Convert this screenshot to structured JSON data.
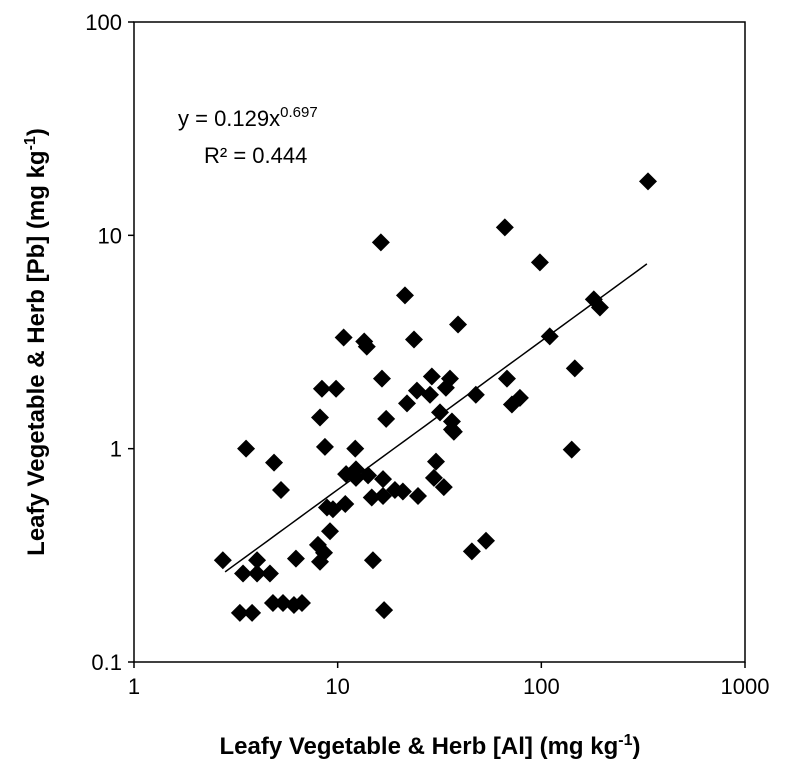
{
  "chart_data": {
    "type": "scatter",
    "xlabel": {
      "text": "Leafy Vegetable & Herb [Al] (mg kg",
      "superscript": "-1",
      "suffix": ")"
    },
    "ylabel": {
      "text": "Leafy Vegetable & Herb [Pb]  (mg kg",
      "superscript": "-1",
      "suffix": ")"
    },
    "equation": {
      "text": "y = 0.129x",
      "superscript": "0.697"
    },
    "r_squared_label": "R² = 0.444",
    "x_log": true,
    "y_log": true,
    "xlim": [
      1,
      1000
    ],
    "xticks": [
      1,
      10,
      100,
      1000
    ],
    "ylim": [
      0.1,
      100
    ],
    "yticks": [
      0.1,
      1,
      10,
      100
    ],
    "grid": false,
    "color": "#000000",
    "x": [
      2.73,
      4.02,
      3.31,
      3.8,
      3.55,
      3.43,
      4.02,
      4.65,
      6.24,
      4.87,
      5.27,
      4.81,
      5.39,
      6.1,
      6.68,
      8.19,
      8.37,
      8.66,
      8.86,
      9.17,
      9.48,
      9.82,
      8.19,
      8.0,
      8.57,
      10.7,
      12.2,
      11.0,
      12.3,
      13.5,
      13.9,
      12.3,
      14.1,
      14.7,
      14.9,
      16.7,
      16.7,
      16.3,
      16.5,
      17.3,
      16.9,
      21.4,
      21.9,
      23.7,
      20.9,
      24.8,
      29.0,
      28.4,
      29.7,
      30.4,
      31.8,
      34.0,
      36.4,
      33.2,
      36.4,
      35.6,
      39.0,
      37.2,
      45.6,
      47.7,
      53.5,
      66.2,
      67.8,
      71.7,
      78.5,
      98.4,
      110,
      141,
      146,
      181,
      194,
      334,
      24.5,
      10.9,
      19.1
    ],
    "values": [
      0.3,
      0.3,
      0.17,
      0.17,
      1.0,
      0.26,
      0.26,
      0.26,
      0.305,
      0.86,
      0.64,
      0.189,
      0.189,
      0.185,
      0.189,
      1.4,
      1.91,
      1.02,
      0.53,
      0.41,
      0.52,
      1.91,
      0.295,
      0.354,
      0.325,
      3.32,
      1.0,
      0.76,
      0.73,
      3.18,
      3.01,
      0.8,
      0.75,
      0.59,
      0.3,
      0.72,
      0.6,
      9.27,
      2.13,
      1.38,
      0.175,
      5.23,
      1.63,
      3.25,
      0.63,
      0.6,
      2.18,
      1.79,
      0.73,
      0.87,
      1.48,
      1.93,
      1.34,
      0.66,
      1.23,
      2.13,
      3.82,
      1.2,
      0.33,
      1.79,
      0.37,
      10.9,
      2.13,
      1.61,
      1.73,
      7.47,
      3.36,
      0.99,
      2.38,
      5.01,
      4.59,
      17.9,
      1.87,
      0.55,
      0.64
    ],
    "trendline": {
      "coefficient": 0.129,
      "exponent": 0.697,
      "x_start": 2.8,
      "x_end": 330
    }
  }
}
